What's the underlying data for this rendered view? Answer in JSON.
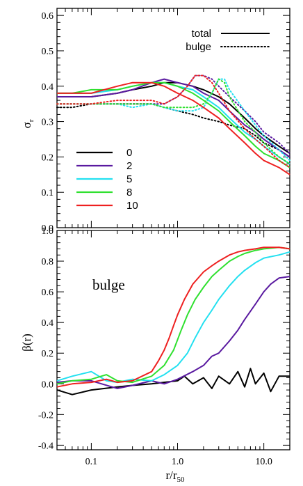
{
  "chart_data": [
    {
      "type": "line",
      "panel": "top",
      "xscale": "log",
      "xlim": [
        0.04,
        20
      ],
      "ylim": [
        0,
        0.62
      ],
      "yticks": [
        "0.0",
        "0.1",
        "0.2",
        "0.3",
        "0.4",
        "0.5",
        "0.6"
      ],
      "ytick_values": [
        0.0,
        0.1,
        0.2,
        0.3,
        0.4,
        0.5,
        0.6
      ],
      "ylabel_main": "σ",
      "ylabel_sub": "r",
      "style_legend": [
        {
          "label": "total",
          "style": "solid"
        },
        {
          "label": "bulge",
          "style": "dotted"
        }
      ],
      "series_legend_position": "bottom-left",
      "series": [
        {
          "name": "0",
          "color": "#000000",
          "total": {
            "x": [
              0.04,
              0.06,
              0.1,
              0.2,
              0.3,
              0.5,
              0.7,
              1.0,
              1.5,
              2,
              3,
              4,
              6,
              8,
              10,
              15,
              20
            ],
            "y": [
              0.37,
              0.37,
              0.37,
              0.38,
              0.39,
              0.4,
              0.41,
              0.41,
              0.4,
              0.39,
              0.37,
              0.35,
              0.31,
              0.28,
              0.26,
              0.23,
              0.21
            ]
          },
          "bulge": {
            "x": [
              0.04,
              0.06,
              0.1,
              0.2,
              0.3,
              0.5,
              0.7,
              1.0,
              1.5,
              2,
              3,
              4,
              6,
              8,
              10,
              15,
              20
            ],
            "y": [
              0.34,
              0.34,
              0.35,
              0.35,
              0.35,
              0.35,
              0.34,
              0.33,
              0.32,
              0.31,
              0.3,
              0.29,
              0.28,
              0.26,
              0.24,
              0.22,
              0.2
            ]
          }
        },
        {
          "name": "2",
          "color": "#5a1aa0",
          "total": {
            "x": [
              0.04,
              0.06,
              0.1,
              0.2,
              0.3,
              0.5,
              0.7,
              1.0,
              1.5,
              2,
              3,
              4,
              6,
              8,
              10,
              15,
              20
            ],
            "y": [
              0.37,
              0.37,
              0.37,
              0.38,
              0.39,
              0.41,
              0.42,
              0.41,
              0.4,
              0.38,
              0.36,
              0.33,
              0.29,
              0.27,
              0.25,
              0.22,
              0.2
            ]
          },
          "bulge": {
            "x": [
              0.04,
              0.06,
              0.1,
              0.2,
              0.3,
              0.5,
              0.7,
              1.0,
              1.3,
              1.6,
              2,
              2.5,
              3,
              4,
              6,
              8,
              10,
              15,
              20
            ],
            "y": [
              0.35,
              0.35,
              0.35,
              0.35,
              0.35,
              0.35,
              0.35,
              0.37,
              0.4,
              0.43,
              0.43,
              0.42,
              0.4,
              0.37,
              0.33,
              0.3,
              0.27,
              0.24,
              0.21
            ]
          }
        },
        {
          "name": "5",
          "color": "#22e0f0",
          "total": {
            "x": [
              0.04,
              0.06,
              0.1,
              0.2,
              0.3,
              0.5,
              0.7,
              1.0,
              1.5,
              2,
              3,
              4,
              6,
              8,
              10,
              15,
              20
            ],
            "y": [
              0.38,
              0.38,
              0.38,
              0.39,
              0.4,
              0.41,
              0.41,
              0.4,
              0.39,
              0.37,
              0.34,
              0.31,
              0.27,
              0.25,
              0.23,
              0.2,
              0.18
            ]
          },
          "bulge": {
            "x": [
              0.04,
              0.06,
              0.1,
              0.2,
              0.3,
              0.5,
              0.7,
              1.0,
              1.5,
              2,
              2.5,
              3,
              3.5,
              4,
              6,
              8,
              10,
              15,
              20
            ],
            "y": [
              0.35,
              0.35,
              0.35,
              0.35,
              0.34,
              0.35,
              0.34,
              0.33,
              0.33,
              0.34,
              0.38,
              0.42,
              0.42,
              0.39,
              0.33,
              0.29,
              0.26,
              0.22,
              0.19
            ]
          }
        },
        {
          "name": "8",
          "color": "#2fe02f",
          "total": {
            "x": [
              0.04,
              0.06,
              0.1,
              0.2,
              0.3,
              0.5,
              0.7,
              1.0,
              1.5,
              2,
              3,
              4,
              6,
              8,
              10,
              15,
              20
            ],
            "y": [
              0.38,
              0.38,
              0.39,
              0.39,
              0.4,
              0.41,
              0.41,
              0.4,
              0.38,
              0.36,
              0.33,
              0.3,
              0.26,
              0.23,
              0.21,
              0.19,
              0.17
            ]
          },
          "bulge": {
            "x": [
              0.04,
              0.06,
              0.1,
              0.2,
              0.3,
              0.5,
              0.7,
              1.0,
              1.5,
              2,
              2.5,
              3,
              3.5,
              4,
              6,
              8,
              10,
              15,
              20
            ],
            "y": [
              0.35,
              0.35,
              0.35,
              0.35,
              0.35,
              0.35,
              0.34,
              0.34,
              0.34,
              0.35,
              0.38,
              0.42,
              0.41,
              0.37,
              0.3,
              0.27,
              0.24,
              0.2,
              0.18
            ]
          }
        },
        {
          "name": "10",
          "color": "#ee2020",
          "total": {
            "x": [
              0.04,
              0.06,
              0.1,
              0.2,
              0.3,
              0.5,
              0.7,
              1.0,
              1.5,
              2,
              3,
              4,
              6,
              8,
              10,
              15,
              20
            ],
            "y": [
              0.38,
              0.38,
              0.38,
              0.4,
              0.41,
              0.41,
              0.4,
              0.38,
              0.36,
              0.34,
              0.31,
              0.28,
              0.24,
              0.21,
              0.19,
              0.17,
              0.15
            ]
          },
          "bulge": {
            "x": [
              0.04,
              0.06,
              0.1,
              0.2,
              0.3,
              0.5,
              0.7,
              1.0,
              1.3,
              1.6,
              2,
              2.5,
              3,
              4,
              6,
              8,
              10,
              15,
              20
            ],
            "y": [
              0.35,
              0.35,
              0.35,
              0.36,
              0.36,
              0.36,
              0.35,
              0.37,
              0.4,
              0.43,
              0.43,
              0.41,
              0.38,
              0.33,
              0.28,
              0.25,
              0.23,
              0.19,
              0.17
            ]
          }
        }
      ]
    },
    {
      "type": "line",
      "panel": "bottom",
      "xscale": "log",
      "xlim": [
        0.04,
        20
      ],
      "ylim": [
        -0.43,
        1.0
      ],
      "yticks": [
        "-0.4",
        "-0.2",
        "0.0",
        "0.2",
        "0.4",
        "0.6",
        "0.8",
        "1.0"
      ],
      "ytick_values": [
        -0.4,
        -0.2,
        0.0,
        0.2,
        0.4,
        0.6,
        0.8,
        1.0
      ],
      "xticks": [
        "0.1",
        "1.0",
        "10.0"
      ],
      "xtick_values": [
        0.1,
        1.0,
        10.0
      ],
      "ylabel": "β(r)",
      "xlabel_main": "r/r",
      "xlabel_sub": "50",
      "annotation": "bulge",
      "series": [
        {
          "name": "0",
          "color": "#000000",
          "x": [
            0.04,
            0.06,
            0.1,
            0.2,
            0.3,
            0.5,
            0.7,
            1.0,
            1.2,
            1.5,
            2,
            2.5,
            3,
            4,
            5,
            6,
            7,
            8,
            10,
            12,
            15,
            20
          ],
          "y": [
            -0.04,
            -0.07,
            -0.04,
            -0.02,
            -0.01,
            0.0,
            0.01,
            0.02,
            0.05,
            0.0,
            0.04,
            -0.03,
            0.05,
            0.0,
            0.08,
            -0.02,
            0.1,
            0.0,
            0.07,
            -0.05,
            0.05,
            0.05
          ]
        },
        {
          "name": "2",
          "color": "#5a1aa0",
          "x": [
            0.04,
            0.06,
            0.1,
            0.2,
            0.3,
            0.5,
            0.7,
            1.0,
            1.5,
            2,
            2.5,
            3,
            4,
            5,
            6,
            8,
            10,
            12,
            15,
            20
          ],
          "y": [
            0.01,
            0.02,
            0.02,
            -0.03,
            -0.01,
            0.02,
            0.0,
            0.03,
            0.08,
            0.12,
            0.18,
            0.2,
            0.28,
            0.35,
            0.42,
            0.52,
            0.6,
            0.65,
            0.69,
            0.7
          ]
        },
        {
          "name": "5",
          "color": "#22e0f0",
          "x": [
            0.04,
            0.06,
            0.1,
            0.15,
            0.2,
            0.3,
            0.5,
            0.7,
            1.0,
            1.3,
            1.6,
            2,
            2.5,
            3,
            4,
            5,
            6,
            8,
            10,
            15,
            20
          ],
          "y": [
            0.02,
            0.05,
            0.08,
            0.02,
            0.01,
            0.03,
            0.02,
            0.06,
            0.12,
            0.2,
            0.3,
            0.4,
            0.48,
            0.55,
            0.64,
            0.7,
            0.74,
            0.79,
            0.82,
            0.84,
            0.86
          ]
        },
        {
          "name": "8",
          "color": "#2fe02f",
          "x": [
            0.04,
            0.06,
            0.1,
            0.15,
            0.2,
            0.3,
            0.5,
            0.7,
            0.9,
            1.1,
            1.3,
            1.6,
            2,
            2.5,
            3,
            4,
            5,
            6,
            8,
            10,
            15,
            20
          ],
          "y": [
            0.0,
            0.02,
            0.03,
            0.06,
            0.02,
            0.01,
            0.05,
            0.12,
            0.22,
            0.35,
            0.45,
            0.55,
            0.63,
            0.7,
            0.74,
            0.8,
            0.83,
            0.85,
            0.87,
            0.88,
            0.89,
            0.88
          ]
        },
        {
          "name": "10",
          "color": "#ee2020",
          "x": [
            0.04,
            0.06,
            0.1,
            0.15,
            0.2,
            0.3,
            0.5,
            0.6,
            0.7,
            0.8,
            0.9,
            1.0,
            1.2,
            1.5,
            2,
            2.5,
            3,
            4,
            5,
            6,
            8,
            10,
            15,
            20
          ],
          "y": [
            -0.02,
            0.0,
            0.01,
            0.03,
            0.01,
            0.02,
            0.08,
            0.15,
            0.22,
            0.3,
            0.38,
            0.45,
            0.55,
            0.65,
            0.73,
            0.77,
            0.8,
            0.84,
            0.86,
            0.87,
            0.88,
            0.89,
            0.89,
            0.88
          ]
        }
      ]
    }
  ]
}
